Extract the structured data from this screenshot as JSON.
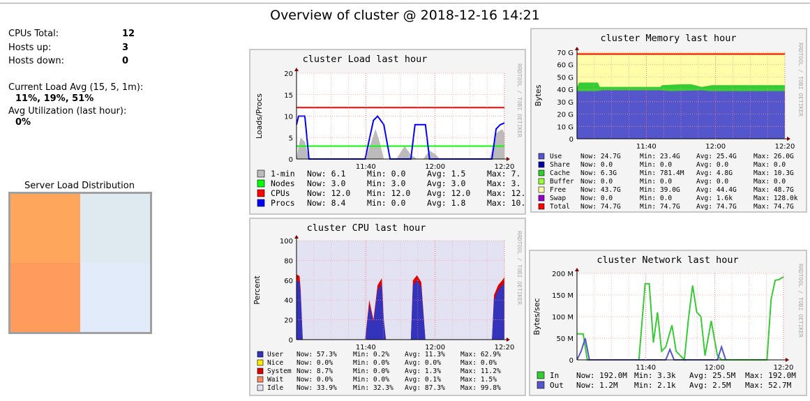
{
  "page": {
    "title": "Overview of cluster @ 2018-12-16 14:21"
  },
  "summary": {
    "cpus_label": "CPUs Total:",
    "cpus_value": "12",
    "hosts_up_label": "Hosts up:",
    "hosts_up_value": "3",
    "hosts_down_label": "Hosts down:",
    "hosts_down_value": "0",
    "load_label": "Current Load Avg (15, 5, 1m):",
    "load_value": "11%, 19%, 51%",
    "util_label": "Avg Utilization (last hour):",
    "util_value": "0%"
  },
  "distribution": {
    "title": "Server Load Distribution",
    "colors": [
      "#ffa65d",
      "#deeaef",
      "#ff9c5d",
      "#e1ebfa"
    ]
  },
  "graph_side_label": "RRDTOOL / TOBI OETIKER",
  "graphs": [
    {
      "id": "load",
      "title": "cluster Load last hour",
      "ylabel": "Loads/Procs",
      "yticks": [
        "0",
        "5",
        "10",
        "15",
        "20"
      ],
      "xticks": [
        "11:40",
        "12:00",
        "12:20"
      ],
      "legend": [
        {
          "label": "1-min",
          "color": "#bbbbbb",
          "now": "6.1",
          "min": "0.0",
          "avg": "1.5",
          "max": "7."
        },
        {
          "label": "Nodes",
          "color": "#00ff00",
          "now": "3.0",
          "min": "3.0",
          "avg": "3.0",
          "max": "3."
        },
        {
          "label": "CPUs",
          "color": "#ff0000",
          "now": "12.0",
          "min": "12.0",
          "avg": "12.0",
          "max": "12."
        },
        {
          "label": "Procs",
          "color": "#0000ff",
          "now": "8.4",
          "min": "0.0",
          "avg": "1.8",
          "max": "10."
        }
      ]
    },
    {
      "id": "memory",
      "title": "cluster Memory last hour",
      "ylabel": "Bytes",
      "yticks": [
        "0",
        "10 G",
        "20 G",
        "30 G",
        "40 G",
        "50 G",
        "60 G",
        "70 G"
      ],
      "xticks": [
        "11:40",
        "12:00",
        "12:20"
      ],
      "legend": [
        {
          "label": "Use",
          "color": "#5555cc",
          "now": "24.7G",
          "min": "23.4G",
          "avg": "25.4G",
          "max": "26.0G"
        },
        {
          "label": "Share",
          "color": "#0000aa",
          "now": "0.0",
          "min": "0.0",
          "avg": "0.0",
          "max": "0.0"
        },
        {
          "label": "Cache",
          "color": "#33cc33",
          "now": "6.3G",
          "min": "781.4M",
          "avg": "4.8G",
          "max": "10.3G"
        },
        {
          "label": "Buffer",
          "color": "#99ff33",
          "now": "0.0",
          "min": "0.0",
          "avg": "0.0",
          "max": "0.0"
        },
        {
          "label": "Free",
          "color": "#ffffaa",
          "now": "43.7G",
          "min": "39.0G",
          "avg": "44.4G",
          "max": "48.7G"
        },
        {
          "label": "Swap",
          "color": "#9900cc",
          "now": "0.0",
          "min": "0.0",
          "avg": "1.6k",
          "max": "128.0k"
        },
        {
          "label": "Total",
          "color": "#ff0000",
          "now": "74.7G",
          "min": "74.7G",
          "avg": "74.7G",
          "max": "74.7G"
        }
      ]
    },
    {
      "id": "cpu",
      "title": "cluster CPU last hour",
      "ylabel": "Percent",
      "yticks": [
        "0",
        "20",
        "40",
        "60",
        "80",
        "100"
      ],
      "xticks": [
        "11:40",
        "12:00",
        "12:20"
      ],
      "legend": [
        {
          "label": "User",
          "color": "#3333bb",
          "now": "57.3%",
          "min": "0.2%",
          "avg": "11.3%",
          "max": "62.9%"
        },
        {
          "label": "Nice",
          "color": "#ffea00",
          "now": "0.0%",
          "min": "0.0%",
          "avg": "0.0%",
          "max": "0.0%"
        },
        {
          "label": "System",
          "color": "#dd0000",
          "now": "8.7%",
          "min": "0.0%",
          "avg": "1.3%",
          "max": "11.2%"
        },
        {
          "label": "Wait",
          "color": "#ff8a60",
          "now": "0.0%",
          "min": "0.0%",
          "avg": "0.1%",
          "max": "1.5%"
        },
        {
          "label": "Idle",
          "color": "#e2e2f2",
          "now": "33.9%",
          "min": "32.3%",
          "avg": "87.3%",
          "max": "99.8%"
        }
      ]
    },
    {
      "id": "network",
      "title": "cluster Network last hour",
      "ylabel": "Bytes/sec",
      "yticks": [
        "0",
        "50 M",
        "100 M",
        "150 M",
        "200 M"
      ],
      "xticks": [
        "11:40",
        "12:00",
        "12:20"
      ],
      "legend": [
        {
          "label": "In",
          "color": "#33cc33",
          "now": "192.0M",
          "min": "3.3k",
          "avg": "25.5M",
          "max": "192.0M"
        },
        {
          "label": "Out",
          "color": "#5555cc",
          "now": "1.2M",
          "min": "2.1k",
          "avg": "2.5M",
          "max": "52.7M"
        }
      ]
    }
  ],
  "legend_words": {
    "now": "Now:",
    "min": "Min:",
    "avg": "Avg:",
    "max": "Max:"
  }
}
